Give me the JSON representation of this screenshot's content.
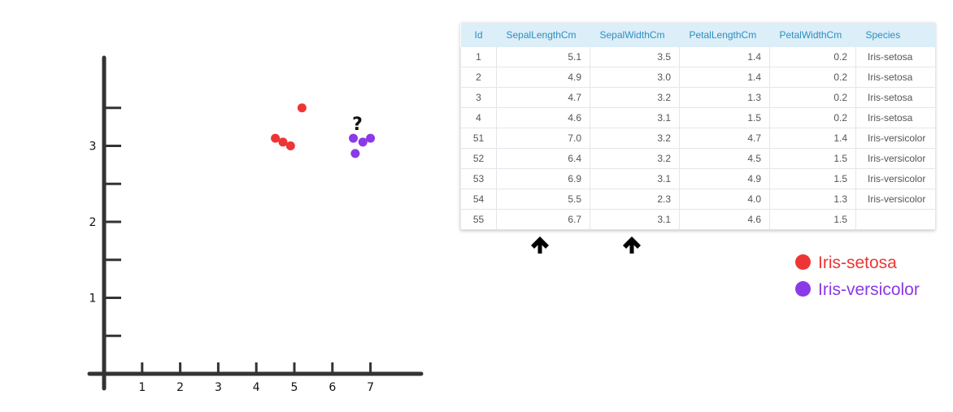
{
  "chart_data": {
    "type": "scatter",
    "xlim": [
      0,
      8
    ],
    "ylim": [
      0,
      4
    ],
    "x_ticks": [
      "1",
      "2",
      "3",
      "4",
      "5",
      "6",
      "7"
    ],
    "y_ticks": [
      "1",
      "2",
      "3"
    ],
    "minor_y_ticks": [
      0.5,
      1.5,
      2.5,
      3.5
    ],
    "series": [
      {
        "name": "Iris-setosa",
        "color": "#ee3535",
        "points": [
          [
            5.2,
            3.5
          ],
          [
            4.5,
            3.1
          ],
          [
            4.7,
            3.05
          ],
          [
            4.9,
            3.0
          ]
        ]
      },
      {
        "name": "Iris-versicolor",
        "color": "#8a3ae6",
        "points": [
          [
            6.55,
            3.1
          ],
          [
            6.8,
            3.05
          ],
          [
            7.0,
            3.1
          ],
          [
            6.6,
            2.9
          ]
        ]
      }
    ],
    "annotation": {
      "text": "?",
      "x": 6.7,
      "y": 3.25
    }
  },
  "table": {
    "columns": [
      "Id",
      "SepalLengthCm",
      "SepalWidthCm",
      "PetalLengthCm",
      "PetalWidthCm",
      "Species"
    ],
    "rows": [
      [
        "1",
        "5.1",
        "3.5",
        "1.4",
        "0.2",
        "Iris-setosa"
      ],
      [
        "2",
        "4.9",
        "3.0",
        "1.4",
        "0.2",
        "Iris-setosa"
      ],
      [
        "3",
        "4.7",
        "3.2",
        "1.3",
        "0.2",
        "Iris-setosa"
      ],
      [
        "4",
        "4.6",
        "3.1",
        "1.5",
        "0.2",
        "Iris-setosa"
      ],
      [
        "51",
        "7.0",
        "3.2",
        "4.7",
        "1.4",
        "Iris-versicolor"
      ],
      [
        "52",
        "6.4",
        "3.2",
        "4.5",
        "1.5",
        "Iris-versicolor"
      ],
      [
        "53",
        "6.9",
        "3.1",
        "4.9",
        "1.5",
        "Iris-versicolor"
      ],
      [
        "54",
        "5.5",
        "2.3",
        "4.0",
        "1.3",
        "Iris-versicolor"
      ],
      [
        "55",
        "6.7",
        "3.1",
        "4.6",
        "1.5",
        ""
      ]
    ]
  },
  "arrows": {
    "icon": "arrow-up-icon",
    "targets": [
      "SepalLengthCm",
      "SepalWidthCm"
    ]
  },
  "legend": [
    {
      "label": "Iris-setosa",
      "color": "#ee3535"
    },
    {
      "label": "Iris-versicolor",
      "color": "#8a3ae6"
    }
  ]
}
